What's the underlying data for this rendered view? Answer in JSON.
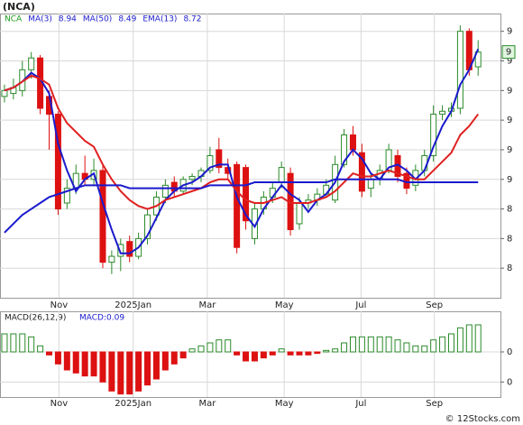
{
  "chart_data": [
    {
      "type": "candlestick",
      "title": "(NCA)",
      "legend": [
        {
          "text": "NCA",
          "color": "#1a9a1a"
        },
        {
          "text": "MA(3)",
          "color": "#1a1acc"
        },
        {
          "text": 8.94,
          "color": "#1a1acc"
        },
        {
          "text": "MA(50)",
          "color": "#1a1acc"
        },
        {
          "text": 8.49,
          "color": "#1a1acc"
        },
        {
          "text": "EMA(13)",
          "color": "#1a1acc"
        },
        {
          "text": 8.72,
          "color": "#1a1acc"
        }
      ],
      "x": [
        0,
        1,
        2,
        3,
        4,
        5,
        6,
        7,
        8,
        9,
        10,
        11,
        12,
        13,
        14,
        15,
        16,
        17,
        18,
        19,
        20,
        21,
        22,
        23,
        24,
        25,
        26,
        27,
        28,
        29,
        30,
        31,
        32,
        33,
        34,
        35,
        36,
        37,
        38,
        39,
        40,
        41,
        42,
        43,
        44,
        45,
        46,
        47,
        48,
        49,
        50,
        51,
        52,
        53
      ],
      "open": [
        8.78,
        8.79,
        8.8,
        8.87,
        8.91,
        8.78,
        8.72,
        8.42,
        8.47,
        8.52,
        8.5,
        8.53,
        8.22,
        8.24,
        8.29,
        8.24,
        8.3,
        8.38,
        8.44,
        8.49,
        8.46,
        8.5,
        8.51,
        8.53,
        8.6,
        8.54,
        8.55,
        8.54,
        8.3,
        8.4,
        8.44,
        8.49,
        8.52,
        8.35,
        8.42,
        8.43,
        8.45,
        8.43,
        8.55,
        8.65,
        8.59,
        8.47,
        8.5,
        8.53,
        8.58,
        8.52,
        8.48,
        8.53,
        8.58,
        8.72,
        8.73,
        8.74,
        9.0,
        8.88
      ],
      "high": [
        8.82,
        8.84,
        8.9,
        8.93,
        8.92,
        8.8,
        8.73,
        8.5,
        8.55,
        8.58,
        8.57,
        8.55,
        8.26,
        8.3,
        8.31,
        8.32,
        8.4,
        8.46,
        8.5,
        8.51,
        8.51,
        8.52,
        8.54,
        8.61,
        8.64,
        8.57,
        8.56,
        8.55,
        8.42,
        8.46,
        8.49,
        8.56,
        8.54,
        8.44,
        8.45,
        8.47,
        8.5,
        8.58,
        8.67,
        8.68,
        8.62,
        8.52,
        8.55,
        8.62,
        8.6,
        8.54,
        8.55,
        8.6,
        8.75,
        8.75,
        8.76,
        9.02,
        9.01,
        8.97
      ],
      "low": [
        8.76,
        8.77,
        8.78,
        8.84,
        8.72,
        8.6,
        8.38,
        8.4,
        8.45,
        8.48,
        8.48,
        8.2,
        8.18,
        8.19,
        8.22,
        8.23,
        8.28,
        8.36,
        8.42,
        8.44,
        8.45,
        8.48,
        8.49,
        8.52,
        8.52,
        8.5,
        8.25,
        8.33,
        8.28,
        8.38,
        8.42,
        8.47,
        8.31,
        8.33,
        8.4,
        8.41,
        8.44,
        8.42,
        8.54,
        8.58,
        8.44,
        8.44,
        8.48,
        8.52,
        8.49,
        8.45,
        8.46,
        8.51,
        8.56,
        8.7,
        8.71,
        8.72,
        8.85,
        8.85
      ],
      "close": [
        8.8,
        8.81,
        8.87,
        8.91,
        8.74,
        8.72,
        8.4,
        8.47,
        8.52,
        8.5,
        8.53,
        8.22,
        8.24,
        8.28,
        8.24,
        8.3,
        8.38,
        8.44,
        8.48,
        8.46,
        8.5,
        8.51,
        8.53,
        8.58,
        8.54,
        8.52,
        8.27,
        8.36,
        8.4,
        8.44,
        8.47,
        8.54,
        8.33,
        8.42,
        8.43,
        8.45,
        8.48,
        8.55,
        8.65,
        8.6,
        8.46,
        8.5,
        8.53,
        8.6,
        8.51,
        8.47,
        8.53,
        8.58,
        8.72,
        8.73,
        8.74,
        9.0,
        8.87,
        8.93
      ],
      "up_color": "#2a8a2a",
      "down_color": "#dd1111",
      "series": [
        {
          "name": "MA(3)",
          "color": "#1a1acc",
          "values": [
            8.8,
            8.81,
            8.83,
            8.86,
            8.84,
            8.79,
            8.62,
            8.53,
            8.46,
            8.5,
            8.52,
            8.42,
            8.33,
            8.25,
            8.25,
            8.27,
            8.31,
            8.37,
            8.43,
            8.46,
            8.48,
            8.49,
            8.51,
            8.54,
            8.55,
            8.55,
            8.44,
            8.38,
            8.34,
            8.4,
            8.44,
            8.48,
            8.45,
            8.43,
            8.39,
            8.43,
            8.45,
            8.49,
            8.56,
            8.6,
            8.57,
            8.52,
            8.5,
            8.54,
            8.55,
            8.53,
            8.5,
            8.53,
            8.61,
            8.68,
            8.73,
            8.82,
            8.87,
            8.94
          ]
        },
        {
          "name": "EMA(13)",
          "color": "#e02020",
          "values": [
            8.8,
            8.81,
            8.83,
            8.85,
            8.84,
            8.82,
            8.74,
            8.69,
            8.66,
            8.63,
            8.61,
            8.55,
            8.5,
            8.46,
            8.43,
            8.41,
            8.4,
            8.41,
            8.43,
            8.44,
            8.45,
            8.46,
            8.47,
            8.49,
            8.5,
            8.5,
            8.46,
            8.43,
            8.42,
            8.42,
            8.43,
            8.44,
            8.42,
            8.42,
            8.42,
            8.43,
            8.44,
            8.46,
            8.49,
            8.52,
            8.51,
            8.51,
            8.52,
            8.53,
            8.52,
            8.51,
            8.5,
            8.5,
            8.53,
            8.56,
            8.59,
            8.65,
            8.68,
            8.72
          ]
        },
        {
          "name": "MA(50)",
          "color": "#1a1acc",
          "values": [
            8.32,
            8.35,
            8.38,
            8.4,
            8.42,
            8.44,
            8.45,
            8.46,
            8.47,
            8.48,
            8.48,
            8.48,
            8.48,
            8.48,
            8.47,
            8.47,
            8.47,
            8.47,
            8.47,
            8.47,
            8.47,
            8.47,
            8.47,
            8.48,
            8.48,
            8.48,
            8.48,
            8.48,
            8.49,
            8.49,
            8.49,
            8.49,
            8.49,
            8.49,
            8.49,
            8.49,
            8.49,
            8.5,
            8.5,
            8.5,
            8.5,
            8.5,
            8.5,
            8.5,
            8.5,
            8.49,
            8.49,
            8.49,
            8.49,
            8.49,
            8.49,
            8.49,
            8.49,
            8.49
          ]
        }
      ],
      "last_price": {
        "value": 8.93,
        "label": "9"
      },
      "xlim": [
        -0.5,
        55.5
      ],
      "xticks": [
        {
          "value": 6.1,
          "label": "Nov"
        },
        {
          "value": 14.4,
          "label": "2025Jan"
        },
        {
          "value": 22.7,
          "label": "Mar"
        },
        {
          "value": 31.3,
          "label": "May"
        },
        {
          "value": 39.9,
          "label": "Jul"
        },
        {
          "value": 48.1,
          "label": "Sep"
        }
      ],
      "ylim": [
        8.1,
        9.06
      ],
      "yticks": [
        {
          "value": 9.0,
          "label": "9"
        },
        {
          "value": 8.9,
          "label": "9"
        },
        {
          "value": 8.8,
          "label": "9"
        },
        {
          "value": 8.7,
          "label": "9"
        },
        {
          "value": 8.6,
          "label": "9"
        },
        {
          "value": 8.5,
          "label": "9"
        },
        {
          "value": 8.4,
          "label": "8"
        },
        {
          "value": 8.3,
          "label": "8"
        },
        {
          "value": 8.2,
          "label": "8"
        }
      ],
      "grid": true
    },
    {
      "type": "bar",
      "title": "MACD(26,12,9)",
      "subtitle": "MACD:0.09",
      "x": [
        0,
        1,
        2,
        3,
        4,
        5,
        6,
        7,
        8,
        9,
        10,
        11,
        12,
        13,
        14,
        15,
        16,
        17,
        18,
        19,
        20,
        21,
        22,
        23,
        24,
        25,
        26,
        27,
        28,
        29,
        30,
        31,
        32,
        33,
        34,
        35,
        36,
        37,
        38,
        39,
        40,
        41,
        42,
        43,
        44,
        45,
        46,
        47,
        48,
        49,
        50,
        51,
        52,
        53
      ],
      "values": [
        0.06,
        0.06,
        0.06,
        0.05,
        0.02,
        -0.01,
        -0.04,
        -0.06,
        -0.07,
        -0.08,
        -0.08,
        -0.1,
        -0.13,
        -0.14,
        -0.14,
        -0.13,
        -0.11,
        -0.09,
        -0.06,
        -0.04,
        -0.02,
        0.01,
        0.02,
        0.03,
        0.04,
        0.04,
        -0.01,
        -0.03,
        -0.03,
        -0.02,
        -0.01,
        0.01,
        -0.01,
        -0.01,
        -0.01,
        -0.005,
        0.005,
        0.01,
        0.03,
        0.05,
        0.05,
        0.05,
        0.05,
        0.05,
        0.04,
        0.03,
        0.02,
        0.02,
        0.04,
        0.05,
        0.06,
        0.08,
        0.09,
        0.09
      ],
      "up_color": "#2a8a2a",
      "down_color": "#dd1111",
      "xlim": [
        -0.5,
        55.5
      ],
      "xticks": [
        {
          "value": 6.1,
          "label": "Nov"
        },
        {
          "value": 14.4,
          "label": "2025Jan"
        },
        {
          "value": 22.7,
          "label": "Mar"
        },
        {
          "value": 31.3,
          "label": "May"
        },
        {
          "value": 39.9,
          "label": "Jul"
        },
        {
          "value": 48.1,
          "label": "Sep"
        }
      ],
      "ylim": [
        -0.15,
        0.135
      ],
      "yticks": [
        0,
        {
          "value": -0.1,
          "label": "0"
        }
      ],
      "grid": true,
      "watermark": "© 12Stocks.com"
    }
  ]
}
